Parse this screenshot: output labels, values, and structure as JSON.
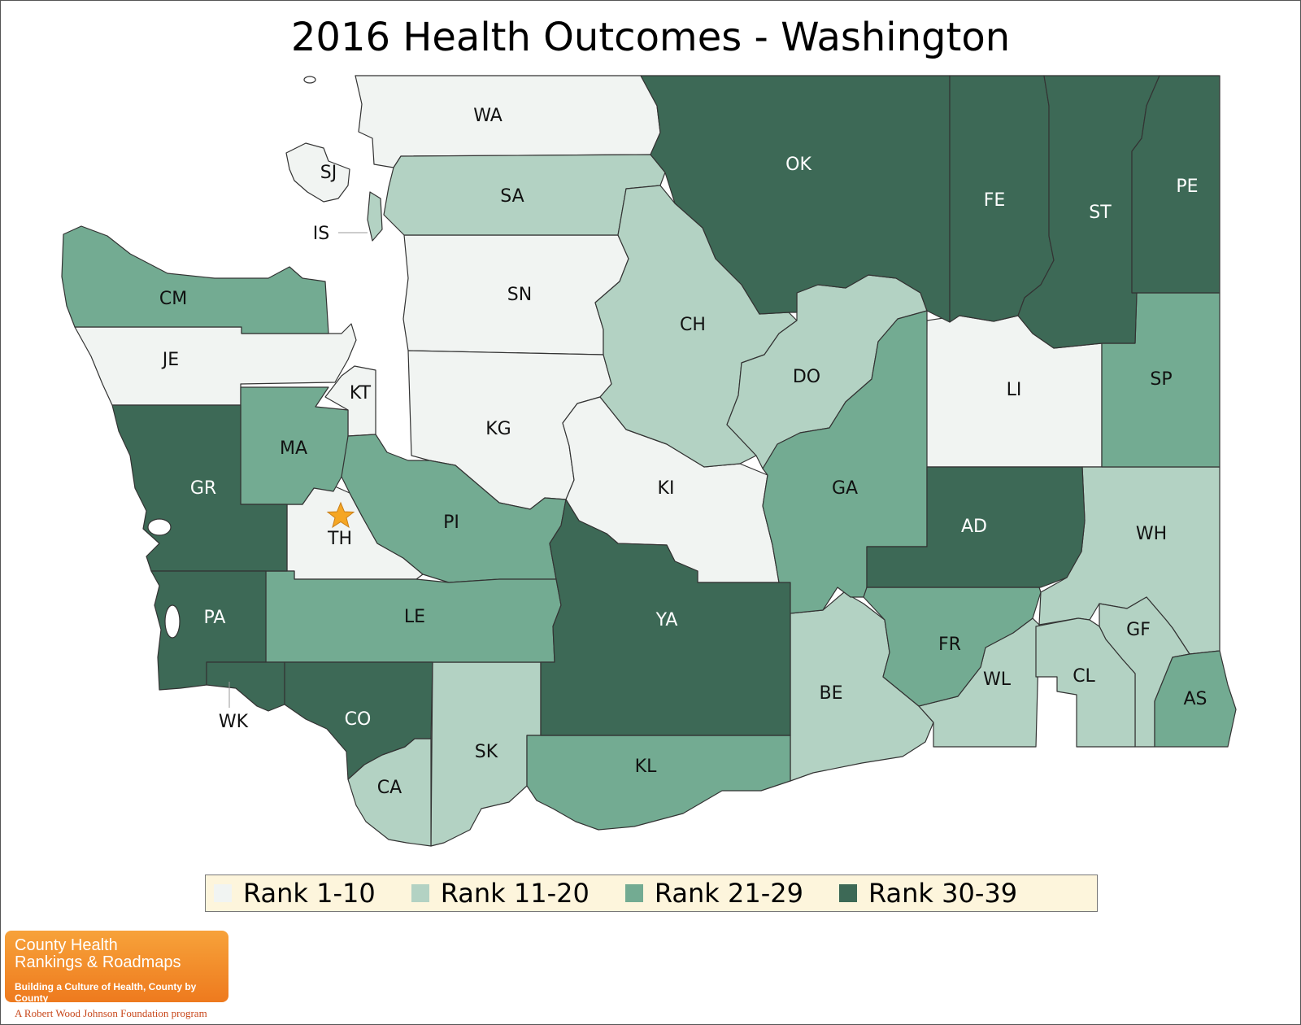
{
  "title": "2016 Health Outcomes - Washington",
  "colors": {
    "rank_1_10": "#f1f4f2",
    "rank_11_20": "#b3d2c3",
    "rank_21_29": "#73ab92",
    "rank_30_39": "#3d6956",
    "star": "#f5a623"
  },
  "legend": [
    {
      "label": "Rank 1-10",
      "color": "#f1f4f2"
    },
    {
      "label": "Rank 11-20",
      "color": "#b3d2c3"
    },
    {
      "label": "Rank 21-29",
      "color": "#73ab92"
    },
    {
      "label": "Rank 30-39",
      "color": "#3d6956"
    }
  ],
  "counties": [
    {
      "abbr": "WA",
      "rank_group": "Rank 1-10"
    },
    {
      "abbr": "SJ",
      "rank_group": "Rank 1-10"
    },
    {
      "abbr": "IS",
      "rank_group": "Rank 11-20"
    },
    {
      "abbr": "SA",
      "rank_group": "Rank 11-20"
    },
    {
      "abbr": "OK",
      "rank_group": "Rank 30-39"
    },
    {
      "abbr": "FE",
      "rank_group": "Rank 30-39"
    },
    {
      "abbr": "ST",
      "rank_group": "Rank 30-39"
    },
    {
      "abbr": "PE",
      "rank_group": "Rank 30-39"
    },
    {
      "abbr": "CM",
      "rank_group": "Rank 21-29"
    },
    {
      "abbr": "JE",
      "rank_group": "Rank 1-10"
    },
    {
      "abbr": "SN",
      "rank_group": "Rank 1-10"
    },
    {
      "abbr": "CH",
      "rank_group": "Rank 11-20"
    },
    {
      "abbr": "DO",
      "rank_group": "Rank 11-20"
    },
    {
      "abbr": "LI",
      "rank_group": "Rank 1-10"
    },
    {
      "abbr": "SP",
      "rank_group": "Rank 21-29"
    },
    {
      "abbr": "KT",
      "rank_group": "Rank 1-10"
    },
    {
      "abbr": "MA",
      "rank_group": "Rank 21-29"
    },
    {
      "abbr": "KG",
      "rank_group": "Rank 1-10"
    },
    {
      "abbr": "GR",
      "rank_group": "Rank 30-39"
    },
    {
      "abbr": "KI",
      "rank_group": "Rank 1-10"
    },
    {
      "abbr": "GA",
      "rank_group": "Rank 21-29"
    },
    {
      "abbr": "AD",
      "rank_group": "Rank 30-39"
    },
    {
      "abbr": "WH",
      "rank_group": "Rank 11-20"
    },
    {
      "abbr": "TH",
      "rank_group": "Rank 1-10"
    },
    {
      "abbr": "PI",
      "rank_group": "Rank 21-29"
    },
    {
      "abbr": "PA",
      "rank_group": "Rank 30-39"
    },
    {
      "abbr": "LE",
      "rank_group": "Rank 21-29"
    },
    {
      "abbr": "YA",
      "rank_group": "Rank 30-39"
    },
    {
      "abbr": "FR",
      "rank_group": "Rank 21-29"
    },
    {
      "abbr": "GF",
      "rank_group": "Rank 11-20"
    },
    {
      "abbr": "WK",
      "rank_group": "Rank 30-39"
    },
    {
      "abbr": "CO",
      "rank_group": "Rank 30-39"
    },
    {
      "abbr": "BE",
      "rank_group": "Rank 11-20"
    },
    {
      "abbr": "WL",
      "rank_group": "Rank 11-20"
    },
    {
      "abbr": "CL",
      "rank_group": "Rank 11-20"
    },
    {
      "abbr": "AS",
      "rank_group": "Rank 21-29"
    },
    {
      "abbr": "SK",
      "rank_group": "Rank 11-20"
    },
    {
      "abbr": "CA",
      "rank_group": "Rank 11-20"
    },
    {
      "abbr": "KL",
      "rank_group": "Rank 21-29"
    }
  ],
  "capital_marker": "star-icon",
  "logo": {
    "line1": "County Health",
    "line2": "Rankings & Roadmaps",
    "tagline": "Building a Culture of Health, County by County",
    "program": "A Robert Wood Johnson Foundation program"
  }
}
